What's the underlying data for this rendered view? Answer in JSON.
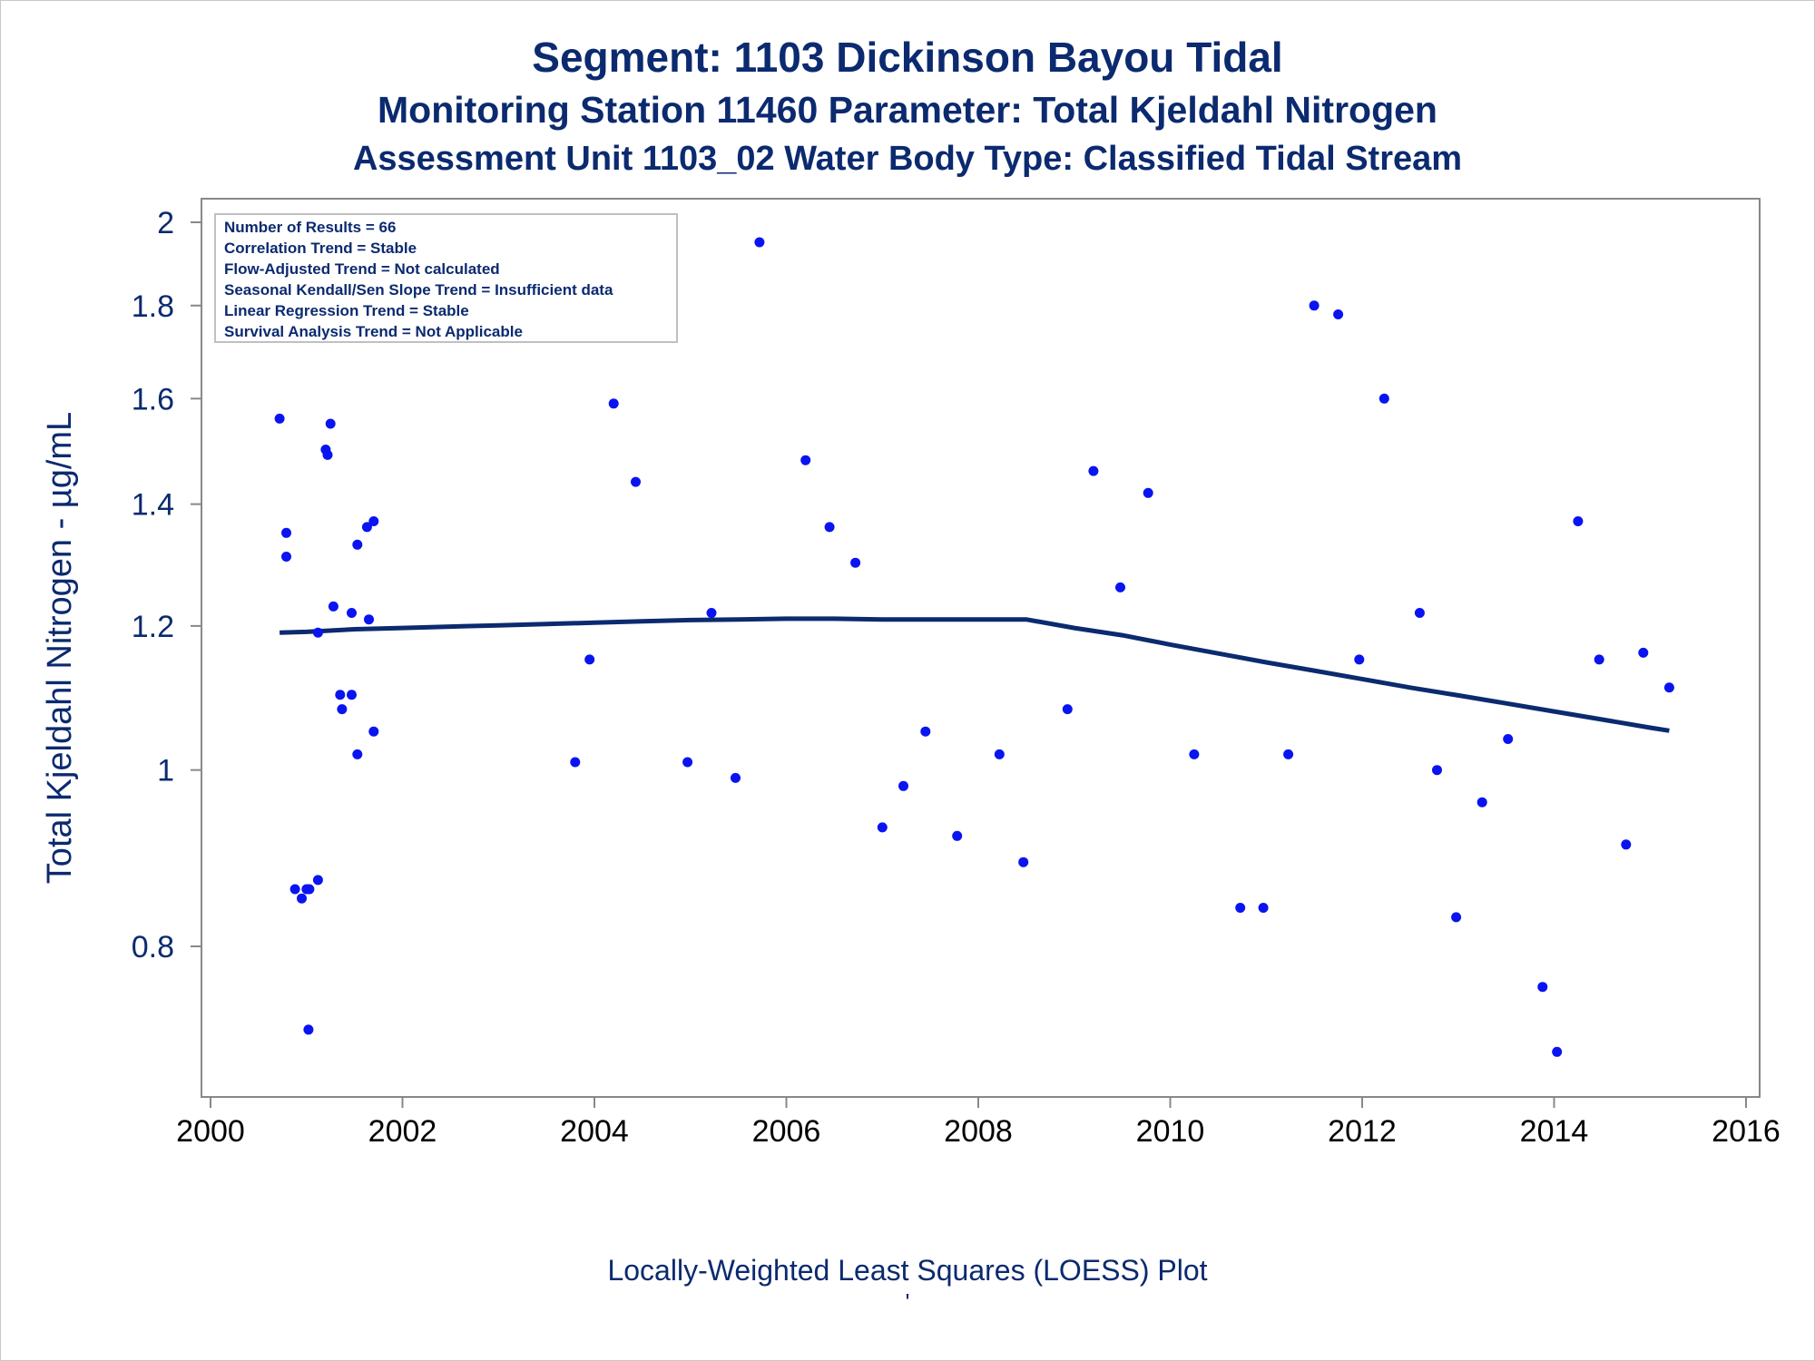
{
  "titles": {
    "line1": "Segment: 1103  Dickinson Bayou Tidal",
    "line2": "Monitoring Station 11460 Parameter: Total Kjeldahl Nitrogen",
    "line3": "Assessment Unit 1103_02   Water Body Type: Classified Tidal Stream"
  },
  "footnote": {
    "caption": "Locally-Weighted Least Squares (LOESS) Plot",
    "mark": "'"
  },
  "colors": {
    "points": "#0a14f0",
    "loess": "#0b2a6f",
    "text": "#0b2a6f",
    "axis": "#888888"
  },
  "chart_data": {
    "type": "scatter",
    "ylabel": "Total Kjeldahl Nitrogen -  µg/mL",
    "xlabel": "",
    "yscale": "log",
    "xlim": [
      2000,
      2016
    ],
    "ylim": [
      0.7,
      2.0
    ],
    "xticks": [
      2000,
      2002,
      2004,
      2006,
      2008,
      2010,
      2012,
      2014,
      2016
    ],
    "xtick_labels": [
      "2000",
      "2002",
      "2004",
      "2006",
      "2008",
      "2010",
      "2012",
      "2014",
      "2016"
    ],
    "yticks": [
      0.8,
      1.0,
      1.2,
      1.4,
      1.6,
      1.8,
      2.0
    ],
    "ytick_labels": [
      "0.8",
      "1",
      "1.2",
      "1.4",
      "1.6",
      "1.8",
      "2"
    ],
    "legend_position": "top-left",
    "stats_box": [
      "Number of Results = 66",
      "Correlation Trend = Stable",
      "Flow-Adjusted Trend = Not calculated",
      "Seasonal Kendall/Sen Slope Trend = Insufficient data",
      "Linear Regression Trend = Stable",
      "Survival Analysis Trend = Not Applicable"
    ],
    "points": [
      [
        2000.72,
        1.56
      ],
      [
        2000.79,
        1.35
      ],
      [
        2000.79,
        1.31
      ],
      [
        2000.88,
        0.86
      ],
      [
        2000.95,
        0.85
      ],
      [
        2001.0,
        0.86
      ],
      [
        2001.03,
        0.86
      ],
      [
        2001.02,
        0.72
      ],
      [
        2001.12,
        0.87
      ],
      [
        2001.12,
        1.19
      ],
      [
        2001.2,
        1.5
      ],
      [
        2001.22,
        1.49
      ],
      [
        2001.25,
        1.55
      ],
      [
        2001.28,
        1.23
      ],
      [
        2001.35,
        1.1
      ],
      [
        2001.37,
        1.08
      ],
      [
        2001.47,
        1.1
      ],
      [
        2001.47,
        1.22
      ],
      [
        2001.53,
        1.33
      ],
      [
        2001.53,
        1.02
      ],
      [
        2001.63,
        1.36
      ],
      [
        2001.65,
        1.21
      ],
      [
        2001.7,
        1.37
      ],
      [
        2001.7,
        1.05
      ],
      [
        2003.8,
        1.01
      ],
      [
        2003.95,
        1.15
      ],
      [
        2004.2,
        1.59
      ],
      [
        2004.43,
        1.44
      ],
      [
        2004.72,
        2.01
      ],
      [
        2004.97,
        1.01
      ],
      [
        2005.22,
        1.22
      ],
      [
        2005.47,
        0.99
      ],
      [
        2005.72,
        1.95
      ],
      [
        2006.2,
        1.48
      ],
      [
        2006.45,
        1.36
      ],
      [
        2006.72,
        1.3
      ],
      [
        2007.0,
        0.93
      ],
      [
        2007.22,
        0.98
      ],
      [
        2007.45,
        1.05
      ],
      [
        2007.78,
        0.92
      ],
      [
        2008.22,
        1.02
      ],
      [
        2008.47,
        0.89
      ],
      [
        2008.93,
        1.08
      ],
      [
        2009.2,
        1.46
      ],
      [
        2009.48,
        1.26
      ],
      [
        2009.77,
        1.42
      ],
      [
        2010.25,
        1.02
      ],
      [
        2010.73,
        0.84
      ],
      [
        2010.97,
        0.84
      ],
      [
        2011.23,
        1.02
      ],
      [
        2011.5,
        1.8
      ],
      [
        2011.75,
        1.78
      ],
      [
        2011.97,
        1.15
      ],
      [
        2012.23,
        1.6
      ],
      [
        2012.6,
        1.22
      ],
      [
        2012.78,
        1.0
      ],
      [
        2012.98,
        0.83
      ],
      [
        2013.25,
        0.96
      ],
      [
        2013.52,
        1.04
      ],
      [
        2013.88,
        0.76
      ],
      [
        2014.03,
        0.7
      ],
      [
        2014.25,
        1.37
      ],
      [
        2014.47,
        1.15
      ],
      [
        2014.75,
        0.91
      ],
      [
        2014.93,
        1.16
      ],
      [
        2015.2,
        1.11
      ]
    ],
    "loess": [
      [
        2000.72,
        1.19
      ],
      [
        2001.0,
        1.191
      ],
      [
        2001.5,
        1.195
      ],
      [
        2002.0,
        1.197
      ],
      [
        2002.5,
        1.199
      ],
      [
        2003.0,
        1.201
      ],
      [
        2003.5,
        1.203
      ],
      [
        2004.0,
        1.205
      ],
      [
        2004.5,
        1.207
      ],
      [
        2005.0,
        1.209
      ],
      [
        2005.5,
        1.21
      ],
      [
        2006.0,
        1.211
      ],
      [
        2006.5,
        1.211
      ],
      [
        2007.0,
        1.21
      ],
      [
        2007.5,
        1.21
      ],
      [
        2008.0,
        1.21
      ],
      [
        2008.5,
        1.21
      ],
      [
        2009.0,
        1.197
      ],
      [
        2009.5,
        1.186
      ],
      [
        2010.0,
        1.172
      ],
      [
        2010.5,
        1.159
      ],
      [
        2011.0,
        1.146
      ],
      [
        2011.5,
        1.134
      ],
      [
        2012.0,
        1.122
      ],
      [
        2012.5,
        1.11
      ],
      [
        2013.0,
        1.099
      ],
      [
        2013.5,
        1.088
      ],
      [
        2014.0,
        1.077
      ],
      [
        2014.5,
        1.066
      ],
      [
        2015.0,
        1.055
      ],
      [
        2015.2,
        1.051
      ]
    ]
  }
}
